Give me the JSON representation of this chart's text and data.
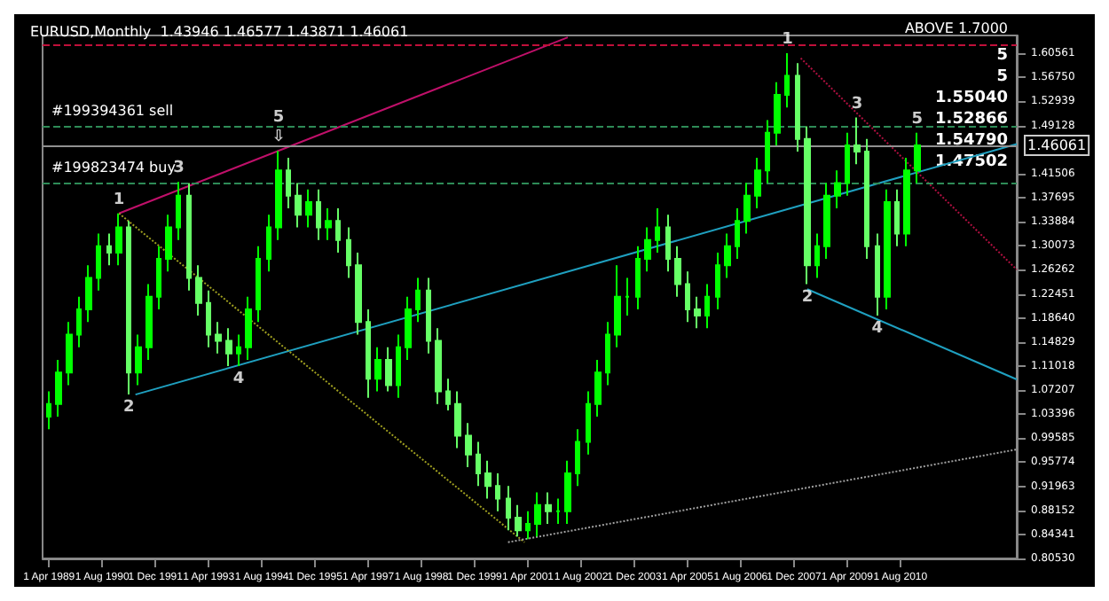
{
  "chart_data": {
    "type": "candlestick",
    "title": "EURUSD,Monthly  1.43946 1.46577 1.43871 1.46061",
    "grid": false,
    "colors": [
      "#00ff00",
      "#00ff00",
      "#00ff00",
      "#00ff00",
      "#00ff00",
      "#00ff00",
      "#66ff66",
      "#00ff00",
      "#66ff66",
      "#00ff00",
      "#00ff00",
      "#00ff00",
      "#00ff00",
      "#00ff00",
      "#66ff66",
      "#66ff66",
      "#66ff66",
      "#66ff66",
      "#66ff66",
      "#00ff00",
      "#00ff00",
      "#00ff00",
      "#00ff00",
      "#00ff00",
      "#66ff66",
      "#66ff66",
      "#00ff00",
      "#66ff66",
      "#00ff00",
      "#66ff66",
      "#66ff66",
      "#66ff66",
      "#66ff66",
      "#00ff00",
      "#66ff66",
      "#00ff00",
      "#00ff00",
      "#00ff00",
      "#66ff66",
      "#66ff66",
      "#66ff66",
      "#66ff66",
      "#66ff66",
      "#66ff66",
      "#66ff66",
      "#66ff66",
      "#66ff66",
      "#66ff66",
      "#00ff00",
      "#00ff00",
      "#66ff66",
      "#00ff00",
      "#00ff00",
      "#00ff00",
      "#00ff00",
      "#00ff00",
      "#00ff00",
      "#00ff00",
      "#00ff00",
      "#00ff00",
      "#00ff00",
      "#00ff00",
      "#66ff66",
      "#66ff66",
      "#66ff66",
      "#66ff66",
      "#00ff00",
      "#00ff00",
      "#00ff00",
      "#00ff00",
      "#00ff00",
      "#00ff00",
      "#00ff00",
      "#00ff00",
      "#00ff00",
      "#66ff66",
      "#66ff66",
      "#00ff00",
      "#00ff00",
      "#00ff00",
      "#00ff00",
      "#66ff66",
      "#66ff66",
      "#66ff66",
      "#00ff00",
      "#66ff66",
      "#00ff00",
      "#00ff00"
    ],
    "xlim": [
      "1989-02",
      "2013-07"
    ],
    "xticks": [
      {
        "value": "1989-04-01",
        "label": "1 Apr 1989"
      },
      {
        "value": "1990-08-01",
        "label": "1 Aug 1990"
      },
      {
        "value": "1991-12-01",
        "label": "1 Dec 1991"
      },
      {
        "value": "1993-04-01",
        "label": "1 Apr 1993"
      },
      {
        "value": "1994-08-01",
        "label": "1 Aug 1994"
      },
      {
        "value": "1995-12-01",
        "label": "1 Dec 1995"
      },
      {
        "value": "1997-04-01",
        "label": "1 Apr 1997"
      },
      {
        "value": "1998-08-01",
        "label": "1 Aug 1998"
      },
      {
        "value": "1999-12-01",
        "label": "1 Dec 1999"
      },
      {
        "value": "2001-04-01",
        "label": "1 Apr 2001"
      },
      {
        "value": "2002-08-01",
        "label": "1 Aug 2002"
      },
      {
        "value": "2003-12-01",
        "label": "1 Dec 2003"
      },
      {
        "value": "2005-04-01",
        "label": "1 Apr 2005"
      },
      {
        "value": "2006-08-01",
        "label": "1 Aug 2006"
      },
      {
        "value": "2007-12-01",
        "label": "1 Dec 2007"
      },
      {
        "value": "2009-04-01",
        "label": "1 Apr 2009"
      },
      {
        "value": "2010-08-01",
        "label": "1 Aug 2010"
      }
    ],
    "ylim": [
      0.8053,
      1.634
    ],
    "yticks": [
      {
        "value": 0.8053,
        "label": "0.80530"
      },
      {
        "value": 0.84341,
        "label": "0.84341"
      },
      {
        "value": 0.88152,
        "label": "0.88152"
      },
      {
        "value": 0.91963,
        "label": "0.91963"
      },
      {
        "value": 0.95774,
        "label": "0.95774"
      },
      {
        "value": 0.99585,
        "label": "0.99585"
      },
      {
        "value": 1.03396,
        "label": "1.03396"
      },
      {
        "value": 1.07207,
        "label": "1.07207"
      },
      {
        "value": 1.11018,
        "label": "1.11018"
      },
      {
        "value": 1.14829,
        "label": "1.14829"
      },
      {
        "value": 1.1864,
        "label": "1.18640"
      },
      {
        "value": 1.22451,
        "label": "1.22451"
      },
      {
        "value": 1.26262,
        "label": "1.26262"
      },
      {
        "value": 1.30073,
        "label": "1.30073"
      },
      {
        "value": 1.33884,
        "label": "1.33884"
      },
      {
        "value": 1.37695,
        "label": "1.37695"
      },
      {
        "value": 1.41506,
        "label": "1.41506"
      },
      {
        "value": 1.49128,
        "label": "1.49128"
      },
      {
        "value": 1.52939,
        "label": "1.52939"
      },
      {
        "value": 1.5675,
        "label": "1.56750"
      },
      {
        "value": 1.60561,
        "label": "1.60561"
      }
    ],
    "x": [
      "1989-04",
      "1989-07",
      "1989-10",
      "1990-01",
      "1990-04",
      "1990-07",
      "1990-10",
      "1991-01",
      "1991-04",
      "1991-07",
      "1991-10",
      "1992-01",
      "1992-04",
      "1992-07",
      "1992-10",
      "1993-01",
      "1993-04",
      "1993-07",
      "1993-10",
      "1994-01",
      "1994-04",
      "1994-07",
      "1994-10",
      "1995-01",
      "1995-04",
      "1995-07",
      "1995-10",
      "1996-01",
      "1996-04",
      "1996-07",
      "1996-10",
      "1997-01",
      "1997-04",
      "1997-07",
      "1997-10",
      "1998-01",
      "1998-04",
      "1998-07",
      "1998-10",
      "1999-01",
      "1999-04",
      "1999-07",
      "1999-10",
      "2000-01",
      "2000-04",
      "2000-07",
      "2000-10",
      "2001-01",
      "2001-04",
      "2001-07",
      "2001-10",
      "2002-01",
      "2002-04",
      "2002-07",
      "2002-10",
      "2003-01",
      "2003-04",
      "2003-07",
      "2003-10",
      "2004-01",
      "2004-04",
      "2004-07",
      "2004-10",
      "2005-01",
      "2005-04",
      "2005-07",
      "2005-10",
      "2006-01",
      "2006-04",
      "2006-07",
      "2006-10",
      "2007-01",
      "2007-04",
      "2007-07",
      "2007-10",
      "2008-01",
      "2008-04",
      "2008-07",
      "2008-10",
      "2009-01",
      "2009-04",
      "2009-07",
      "2009-10",
      "2010-01",
      "2010-04",
      "2010-07",
      "2010-10",
      "2011-01"
    ],
    "ohlc": [
      [
        1.03,
        1.07,
        1.01,
        1.05
      ],
      [
        1.05,
        1.12,
        1.03,
        1.1
      ],
      [
        1.1,
        1.18,
        1.08,
        1.16
      ],
      [
        1.16,
        1.22,
        1.14,
        1.2
      ],
      [
        1.2,
        1.27,
        1.18,
        1.25
      ],
      [
        1.25,
        1.32,
        1.23,
        1.3
      ],
      [
        1.3,
        1.32,
        1.27,
        1.29
      ],
      [
        1.29,
        1.352,
        1.27,
        1.33
      ],
      [
        1.33,
        1.34,
        1.065,
        1.1
      ],
      [
        1.1,
        1.16,
        1.08,
        1.14
      ],
      [
        1.14,
        1.24,
        1.12,
        1.22
      ],
      [
        1.22,
        1.3,
        1.2,
        1.28
      ],
      [
        1.28,
        1.35,
        1.26,
        1.33
      ],
      [
        1.33,
        1.402,
        1.31,
        1.38
      ],
      [
        1.38,
        1.4,
        1.23,
        1.25
      ],
      [
        1.25,
        1.27,
        1.19,
        1.21
      ],
      [
        1.21,
        1.23,
        1.14,
        1.16
      ],
      [
        1.16,
        1.18,
        1.13,
        1.15
      ],
      [
        1.15,
        1.17,
        1.11,
        1.13
      ],
      [
        1.13,
        1.16,
        1.11,
        1.14
      ],
      [
        1.14,
        1.22,
        1.12,
        1.2
      ],
      [
        1.2,
        1.3,
        1.18,
        1.28
      ],
      [
        1.28,
        1.35,
        1.26,
        1.33
      ],
      [
        1.33,
        1.451,
        1.31,
        1.42
      ],
      [
        1.42,
        1.44,
        1.36,
        1.38
      ],
      [
        1.38,
        1.4,
        1.33,
        1.35
      ],
      [
        1.35,
        1.39,
        1.33,
        1.37
      ],
      [
        1.37,
        1.39,
        1.31,
        1.33
      ],
      [
        1.33,
        1.36,
        1.31,
        1.34
      ],
      [
        1.34,
        1.36,
        1.29,
        1.31
      ],
      [
        1.31,
        1.33,
        1.25,
        1.27
      ],
      [
        1.27,
        1.29,
        1.16,
        1.18
      ],
      [
        1.18,
        1.2,
        1.06,
        1.09
      ],
      [
        1.09,
        1.14,
        1.07,
        1.12
      ],
      [
        1.12,
        1.14,
        1.07,
        1.08
      ],
      [
        1.08,
        1.16,
        1.06,
        1.14
      ],
      [
        1.14,
        1.22,
        1.12,
        1.2
      ],
      [
        1.2,
        1.25,
        1.18,
        1.23
      ],
      [
        1.23,
        1.25,
        1.13,
        1.15
      ],
      [
        1.15,
        1.17,
        1.05,
        1.07
      ],
      [
        1.07,
        1.09,
        1.04,
        1.05
      ],
      [
        1.05,
        1.07,
        0.98,
        1.0
      ],
      [
        1.0,
        1.02,
        0.95,
        0.97
      ],
      [
        0.97,
        0.99,
        0.92,
        0.94
      ],
      [
        0.94,
        0.96,
        0.9,
        0.92
      ],
      [
        0.92,
        0.94,
        0.88,
        0.9
      ],
      [
        0.9,
        0.92,
        0.85,
        0.87
      ],
      [
        0.87,
        0.89,
        0.84,
        0.85
      ],
      [
        0.85,
        0.88,
        0.836,
        0.86
      ],
      [
        0.86,
        0.91,
        0.84,
        0.89
      ],
      [
        0.89,
        0.91,
        0.86,
        0.88
      ],
      [
        0.88,
        0.9,
        0.86,
        0.88
      ],
      [
        0.88,
        0.96,
        0.86,
        0.94
      ],
      [
        0.94,
        1.01,
        0.92,
        0.99
      ],
      [
        0.99,
        1.07,
        0.97,
        1.05
      ],
      [
        1.05,
        1.12,
        1.03,
        1.1
      ],
      [
        1.1,
        1.18,
        1.08,
        1.16
      ],
      [
        1.16,
        1.27,
        1.14,
        1.22
      ],
      [
        1.22,
        1.25,
        1.19,
        1.22
      ],
      [
        1.22,
        1.3,
        1.2,
        1.28
      ],
      [
        1.28,
        1.33,
        1.26,
        1.31
      ],
      [
        1.31,
        1.36,
        1.29,
        1.33
      ],
      [
        1.33,
        1.35,
        1.26,
        1.28
      ],
      [
        1.28,
        1.3,
        1.22,
        1.24
      ],
      [
        1.24,
        1.26,
        1.18,
        1.2
      ],
      [
        1.2,
        1.22,
        1.17,
        1.19
      ],
      [
        1.19,
        1.24,
        1.17,
        1.22
      ],
      [
        1.22,
        1.29,
        1.2,
        1.27
      ],
      [
        1.27,
        1.32,
        1.25,
        1.3
      ],
      [
        1.3,
        1.36,
        1.28,
        1.34
      ],
      [
        1.34,
        1.4,
        1.32,
        1.38
      ],
      [
        1.38,
        1.44,
        1.36,
        1.42
      ],
      [
        1.42,
        1.5,
        1.4,
        1.48
      ],
      [
        1.48,
        1.56,
        1.46,
        1.54
      ],
      [
        1.54,
        1.606,
        1.52,
        1.57
      ],
      [
        1.57,
        1.59,
        1.45,
        1.47
      ],
      [
        1.47,
        1.49,
        1.24,
        1.27
      ],
      [
        1.27,
        1.32,
        1.25,
        1.3
      ],
      [
        1.3,
        1.4,
        1.28,
        1.38
      ],
      [
        1.38,
        1.42,
        1.36,
        1.4
      ],
      [
        1.4,
        1.48,
        1.38,
        1.46
      ],
      [
        1.46,
        1.504,
        1.43,
        1.45
      ],
      [
        1.45,
        1.47,
        1.28,
        1.3
      ],
      [
        1.3,
        1.32,
        1.19,
        1.22
      ],
      [
        1.22,
        1.39,
        1.2,
        1.37
      ],
      [
        1.37,
        1.39,
        1.3,
        1.32
      ],
      [
        1.32,
        1.44,
        1.3,
        1.42
      ],
      [
        1.42,
        1.48,
        1.4,
        1.46
      ]
    ],
    "series": [
      {
        "type": "line",
        "color": "#c0106a",
        "line_style": "solid",
        "x": [
          "1991-01",
          "2002-04"
        ],
        "values": [
          1.352,
          1.631
        ]
      },
      {
        "type": "line",
        "color": "#1fa0c0",
        "line_style": "solid",
        "x": [
          "1991-06",
          "2013-07"
        ],
        "values": [
          1.065,
          1.462
        ]
      },
      {
        "type": "line",
        "color": "#1fa0c0",
        "line_style": "solid",
        "x": [
          "2008-04",
          "2013-07"
        ],
        "values": [
          1.232,
          1.089
        ]
      },
      {
        "type": "line",
        "color": "#a0a020",
        "line_style": "dotted",
        "x": [
          "1991-01",
          "2001-03"
        ],
        "values": [
          1.352,
          0.831
        ]
      },
      {
        "type": "line",
        "color": "#a0a0a0",
        "line_style": "dotted",
        "x": [
          "2000-10",
          "2013-07"
        ],
        "values": [
          0.831,
          0.978
        ]
      },
      {
        "type": "line",
        "color": "#b01040",
        "line_style": "dotted",
        "x": [
          "2008-02",
          "2013-07"
        ],
        "values": [
          1.598,
          1.263
        ]
      }
    ],
    "ref_lines": [
      {
        "axis": "y",
        "value": 1.491,
        "label": "#199394361 sell",
        "color": "#2e8b57",
        "line_style": "dashed"
      },
      {
        "axis": "y",
        "value": 1.397,
        "label": "#199823474 buy",
        "color": "#2e8b57",
        "line_style": "dashed"
      },
      {
        "axis": "y",
        "value": 1.46061,
        "label": "1.46061",
        "color": "#909090",
        "line_style": "solid"
      },
      {
        "axis": "y",
        "value": 1.618,
        "label": "ABOVE 1.7000",
        "color": "#c0103a",
        "line_style": "dashed"
      }
    ],
    "annotations": [
      {
        "text": "1",
        "x": "1991-01",
        "y": 1.352
      },
      {
        "text": "2",
        "x": "1991-04",
        "y": 1.065
      },
      {
        "text": "3",
        "x": "1992-07",
        "y": 1.402
      },
      {
        "text": "4",
        "x": "1994-01",
        "y": 1.11
      },
      {
        "text": "⇩",
        "x": "1995-01",
        "y": 1.451
      },
      {
        "text": "5",
        "x": "1995-01",
        "y": 1.451
      },
      {
        "text": "1",
        "x": "2007-10",
        "y": 1.606
      },
      {
        "text": "2",
        "x": "2008-04",
        "y": 1.24
      },
      {
        "text": "3",
        "x": "2009-07",
        "y": 1.504
      },
      {
        "text": "4",
        "x": "2010-01",
        "y": 1.19
      },
      {
        "text": "5",
        "x": "2011-01",
        "y": 1.48
      },
      "5",
      "5",
      "1.55040",
      "1.52866",
      "1.54790",
      "1.47502"
    ]
  }
}
